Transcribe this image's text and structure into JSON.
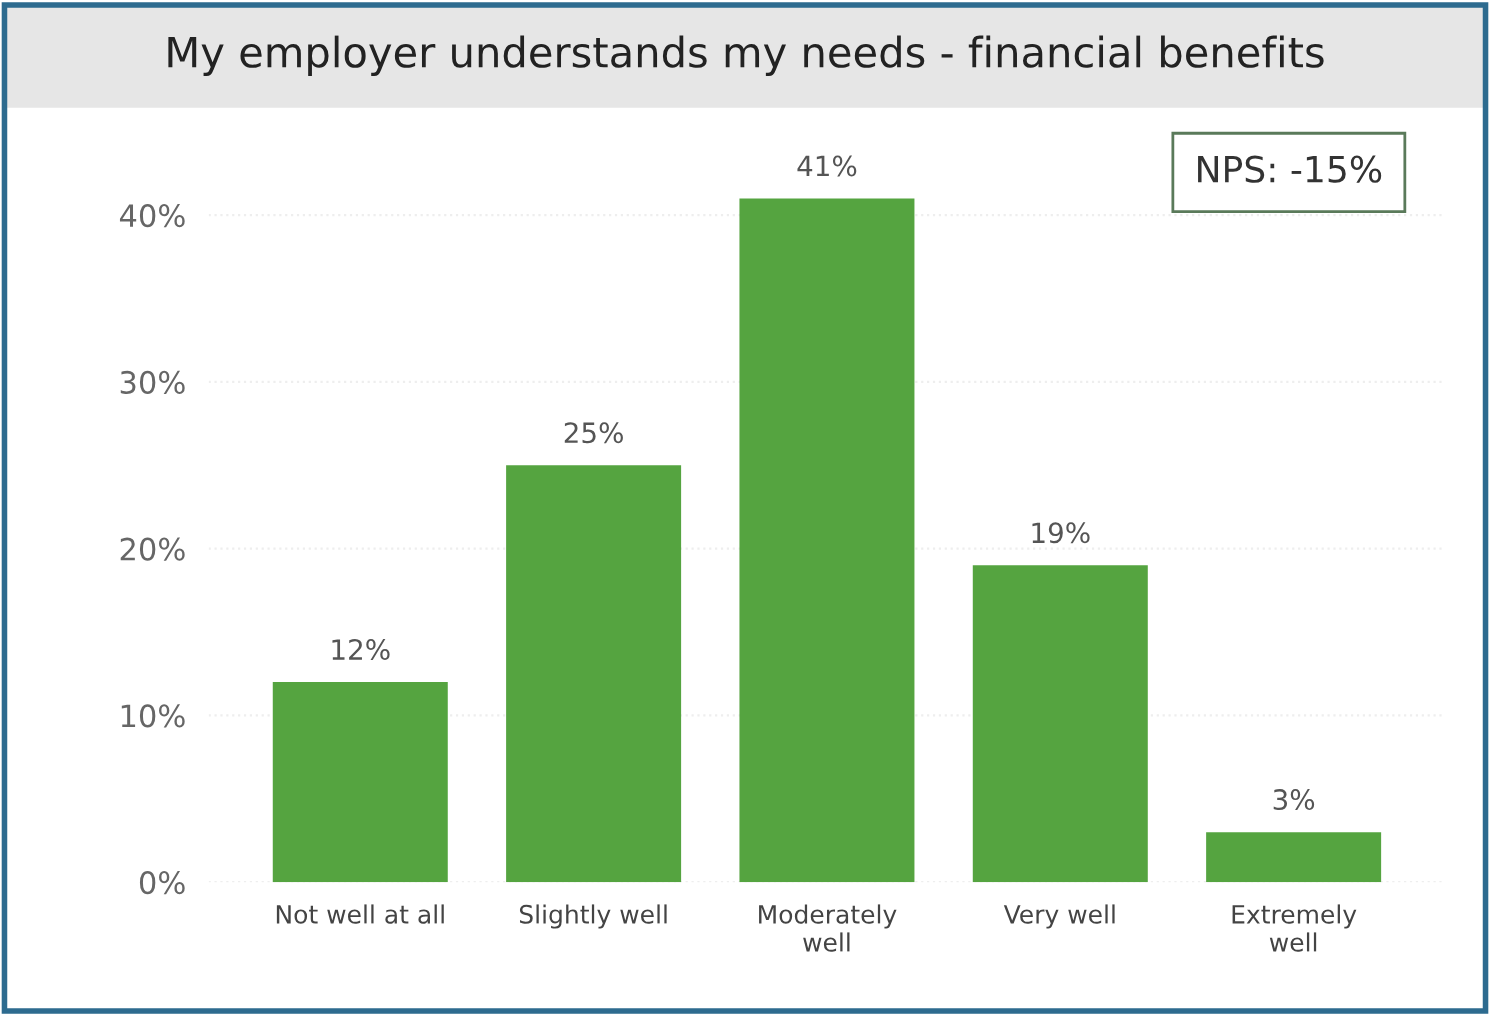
{
  "chart_data": {
    "type": "bar",
    "title": "My employer understands my needs - financial benefits",
    "categories": [
      "Not well at all",
      "Slightly well",
      "Moderately\nwell",
      "Very well",
      "Extremely\nwell"
    ],
    "values": [
      12,
      25,
      41,
      19,
      3
    ],
    "value_labels": [
      "12%",
      "25%",
      "41%",
      "19%",
      "3%"
    ],
    "color": "#55a440",
    "ylim": [
      0,
      45
    ],
    "yticks": [
      {
        "value": 0,
        "label": "0%"
      },
      {
        "value": 10,
        "label": "10%"
      },
      {
        "value": 20,
        "label": "20%"
      },
      {
        "value": 30,
        "label": "30%"
      },
      {
        "value": 40,
        "label": "40%"
      }
    ],
    "grid": "y",
    "annotations": [
      "NPS: -15%"
    ]
  }
}
